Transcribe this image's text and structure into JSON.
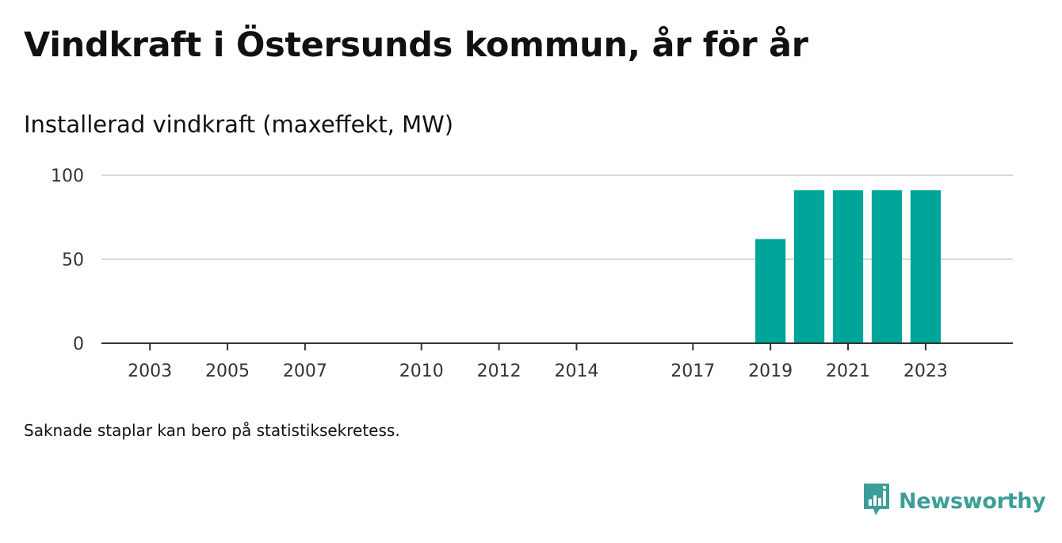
{
  "title": "Vindkraft i Östersunds kommun, år för år",
  "subtitle": "Installerad vindkraft (maxeffekt, MW)",
  "footnote": "Saknade staplar kan bero på statistiksekretess.",
  "brand": {
    "name": "Newsworthy",
    "icon": "newsworthy-logo-icon",
    "color": "#3d9e97"
  },
  "colors": {
    "bar": "#00a59a",
    "grid": "#d9d9d9",
    "axis": "#333333"
  },
  "chart_data": {
    "type": "bar",
    "title": "Vindkraft i Östersunds kommun, år för år",
    "ylabel": "Installerad vindkraft (maxeffekt, MW)",
    "xlabel": "",
    "ylim": [
      0,
      100
    ],
    "yticks": [
      0,
      50,
      100
    ],
    "xlim": [
      2001.75,
      2025.25
    ],
    "xticks": [
      2003,
      2005,
      2007,
      2010,
      2012,
      2014,
      2017,
      2019,
      2021,
      2023
    ],
    "grid": true,
    "categories": [
      2019,
      2020,
      2021,
      2022,
      2023
    ],
    "values": [
      62,
      91,
      91,
      91,
      91
    ]
  }
}
